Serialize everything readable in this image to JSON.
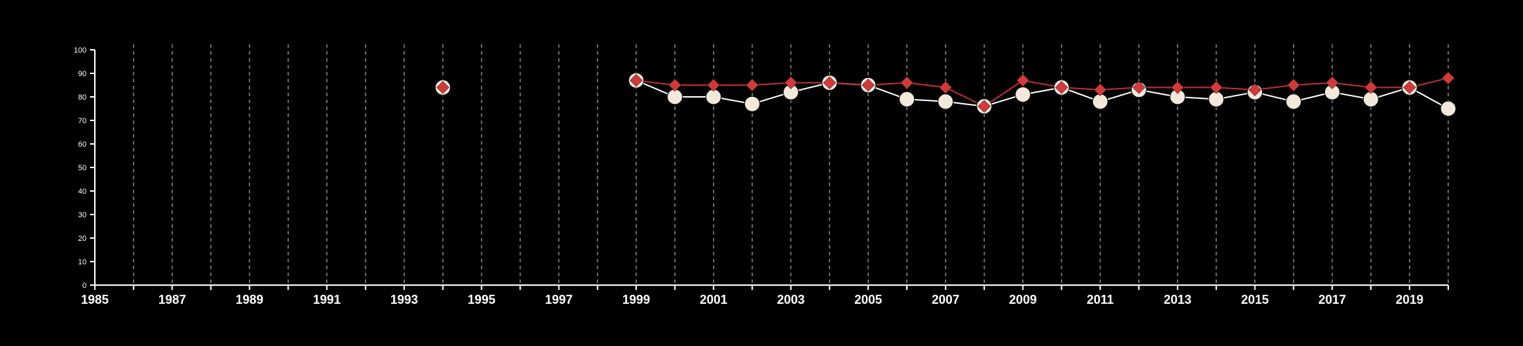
{
  "chart_data": {
    "type": "line",
    "xlim": [
      1985,
      2020
    ],
    "ylim": [
      0,
      100
    ],
    "x_ticks": [
      "1985",
      "1987",
      "1989",
      "1991",
      "1993",
      "1995",
      "1997",
      "1999",
      "2001",
      "2003",
      "2005",
      "2007",
      "2009",
      "2011",
      "2013",
      "2015",
      "2017",
      "2019"
    ],
    "y_ticks": [
      "0",
      "10",
      "20",
      "30",
      "40",
      "50",
      "60",
      "70",
      "80",
      "90",
      "100"
    ],
    "grid": "vertical dashed lines at each year",
    "colors": {
      "background": "#000000",
      "axis": "#ffffff",
      "grid": "#8a8a8a"
    },
    "series": [
      {
        "marker": "circle",
        "color": "#f2e8dc",
        "line_color": "#ffffff",
        "points": [
          [
            1994,
            84
          ],
          [
            1999,
            87
          ],
          [
            2000,
            80
          ],
          [
            2001,
            80
          ],
          [
            2002,
            77
          ],
          [
            2003,
            82
          ],
          [
            2004,
            86
          ],
          [
            2005,
            85
          ],
          [
            2006,
            79
          ],
          [
            2007,
            78
          ],
          [
            2008,
            76
          ],
          [
            2009,
            81
          ],
          [
            2010,
            84
          ],
          [
            2011,
            78
          ],
          [
            2012,
            83
          ],
          [
            2013,
            80
          ],
          [
            2014,
            79
          ],
          [
            2015,
            82
          ],
          [
            2016,
            78
          ],
          [
            2017,
            82
          ],
          [
            2018,
            79
          ],
          [
            2019,
            84
          ],
          [
            2020,
            75
          ]
        ]
      },
      {
        "marker": "diamond",
        "color": "#d03a3a",
        "line_color": "#c23030",
        "points": [
          [
            1994,
            84
          ],
          [
            1999,
            87
          ],
          [
            2000,
            85
          ],
          [
            2001,
            85
          ],
          [
            2002,
            85
          ],
          [
            2003,
            86
          ],
          [
            2004,
            86
          ],
          [
            2005,
            85
          ],
          [
            2006,
            86
          ],
          [
            2007,
            84
          ],
          [
            2008,
            76
          ],
          [
            2009,
            87
          ],
          [
            2010,
            84
          ],
          [
            2011,
            83
          ],
          [
            2012,
            84
          ],
          [
            2013,
            84
          ],
          [
            2014,
            84
          ],
          [
            2015,
            83
          ],
          [
            2016,
            85
          ],
          [
            2017,
            86
          ],
          [
            2018,
            84
          ],
          [
            2019,
            84
          ],
          [
            2020,
            88
          ]
        ]
      }
    ]
  }
}
